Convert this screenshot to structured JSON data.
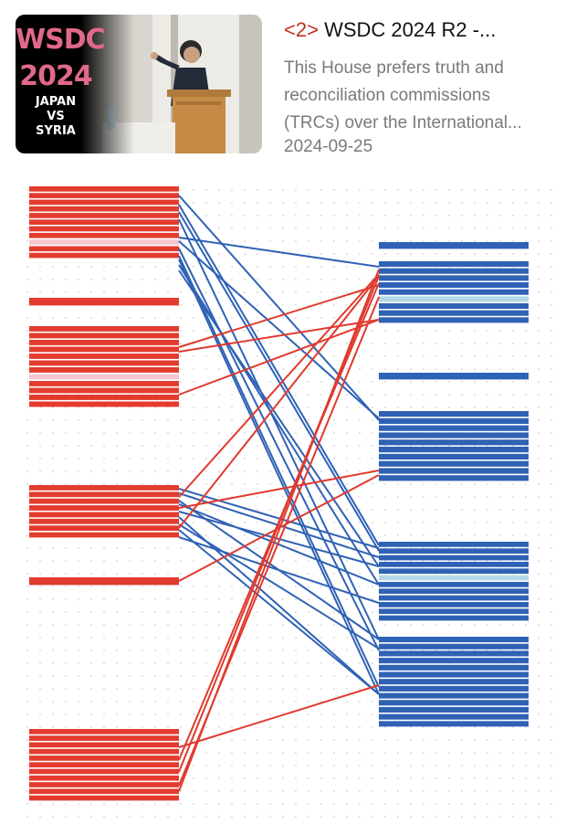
{
  "item": {
    "index_label": "<2>",
    "title": "WSDC 2024 R2 -...",
    "description_lines": [
      "This House prefers truth and",
      "reconciliation commissions",
      "(TRCs) over the International..."
    ],
    "date": "2024-09-25",
    "thumbnail": {
      "line1": "WSDC",
      "line2": "2024",
      "line3": "JAPAN",
      "line4": "VS",
      "line5": "SYRIA"
    }
  },
  "colors": {
    "left_block": "#e33b2e",
    "left_highlight": "#f7c6cf",
    "right_block": "#2f62b5",
    "right_highlight": "#b3d9e6",
    "left_line": "#e03a2e",
    "right_line": "#2f62b5",
    "dot": "#cfcfcf",
    "index": "#c0301f"
  }
}
